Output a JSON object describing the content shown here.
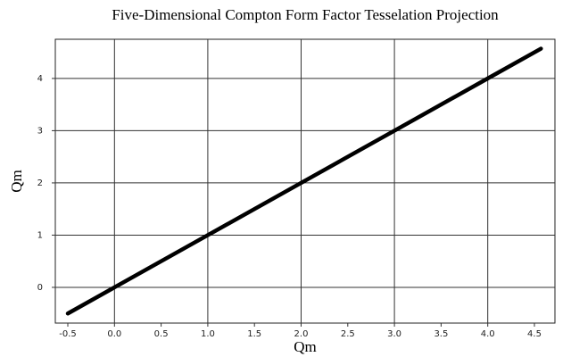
{
  "chart_data": {
    "type": "line",
    "title": "Five-Dimensional Compton Form Factor Tesselation Projection",
    "x_label": "Qm",
    "y_label": "Qm",
    "x": [
      -0.5,
      0,
      1,
      2,
      3,
      4,
      4.57
    ],
    "series": [
      {
        "color": "#000000",
        "values": [
          -0.5,
          0,
          1,
          2,
          3,
          4,
          4.57
        ]
      }
    ],
    "xlim": [
      -0.634,
      4.72
    ],
    "ylim": [
      -0.684,
      4.75
    ],
    "xticks": [
      -0.5,
      {
        "value": 0,
        "label": "0.0"
      },
      0.5,
      {
        "value": 1,
        "label": "1.0"
      },
      1.5,
      {
        "value": 2,
        "label": "2.0"
      },
      2.5,
      {
        "value": 3,
        "label": "3.0"
      },
      3.5,
      {
        "value": 4,
        "label": "4.0"
      },
      4.5
    ],
    "yticks": [
      0,
      1,
      2,
      3,
      4
    ],
    "grid": true
  }
}
